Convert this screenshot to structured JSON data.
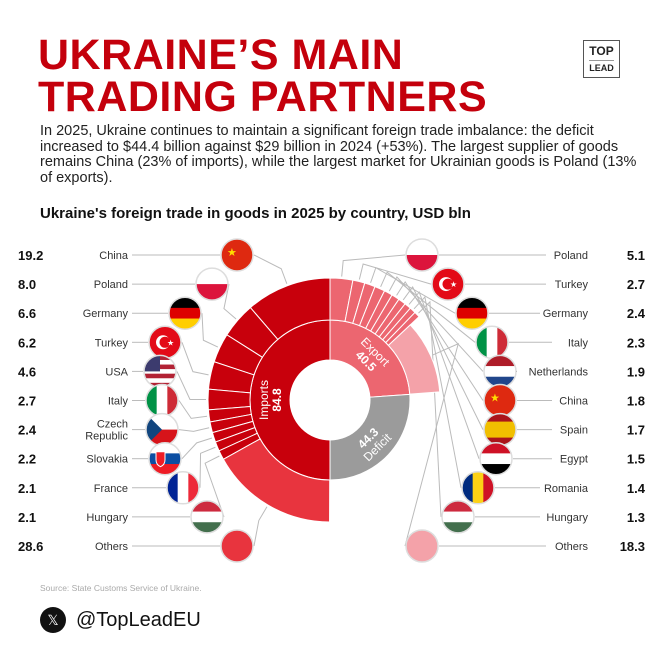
{
  "header": {
    "title_line1": "UKRAINE’S MAIN",
    "title_line2": "TRADING PARTNERS",
    "logo_top": "TOP",
    "logo_bottom": "LEAD",
    "subtitle": "In 2025, Ukraine continues to maintain a significant foreign trade imbalance: the deficit increased to $44.4 billion against $29 billion in 2024 (+53%). The largest supplier of goods remains China (23% of imports), while the largest market for Ukrainian goods is Poland (13% of exports)."
  },
  "chart_data": {
    "type": "sunburst",
    "title": "Ukraine's foreign trade in goods in 2025 by country, USD bln",
    "totals": {
      "imports_label": "Imports",
      "imports_value": "84.8",
      "export_label": "Export",
      "export_value": "40.5",
      "deficit_label": "Deficit",
      "deficit_value": "44.3"
    },
    "imports": [
      {
        "name": "China",
        "value": 19.2,
        "flag": "china-flag-icon"
      },
      {
        "name": "Poland",
        "value": 8.0,
        "flag": "poland-flag-icon"
      },
      {
        "name": "Germany",
        "value": 6.6,
        "flag": "germany-flag-icon"
      },
      {
        "name": "Turkey",
        "value": 6.2,
        "flag": "turkey-flag-icon"
      },
      {
        "name": "USA",
        "value": 4.6,
        "flag": "usa-flag-icon"
      },
      {
        "name": "Italy",
        "value": 2.7,
        "flag": "italy-flag-icon"
      },
      {
        "name": "Czech Republic",
        "value": 2.4,
        "flag": "czech-flag-icon"
      },
      {
        "name": "Slovakia",
        "value": 2.2,
        "flag": "slovakia-flag-icon"
      },
      {
        "name": "France",
        "value": 2.1,
        "flag": "france-flag-icon"
      },
      {
        "name": "Hungary",
        "value": 2.1,
        "flag": "hungary-flag-icon"
      },
      {
        "name": "Others",
        "value": 28.6,
        "flag": "others-circle-icon"
      }
    ],
    "exports": [
      {
        "name": "Poland",
        "value": 5.1,
        "flag": "poland-flag-icon"
      },
      {
        "name": "Turkey",
        "value": 2.7,
        "flag": "turkey-flag-icon"
      },
      {
        "name": "Germany",
        "value": 2.4,
        "flag": "germany-flag-icon"
      },
      {
        "name": "Italy",
        "value": 2.3,
        "flag": "italy-flag-icon"
      },
      {
        "name": "Netherlands",
        "value": 1.9,
        "flag": "netherlands-flag-icon"
      },
      {
        "name": "China",
        "value": 1.8,
        "flag": "china-flag-icon"
      },
      {
        "name": "Spain",
        "value": 1.7,
        "flag": "spain-flag-icon"
      },
      {
        "name": "Egypt",
        "value": 1.5,
        "flag": "egypt-flag-icon"
      },
      {
        "name": "Romania",
        "value": 1.4,
        "flag": "romania-flag-icon"
      },
      {
        "name": "Hungary",
        "value": 1.3,
        "flag": "hungary-flag-icon"
      },
      {
        "name": "Others",
        "value": 18.3,
        "flag": "others-circle-icon"
      }
    ],
    "colors": {
      "imports": "#c8000c",
      "imports_others": "#e8343e",
      "export": "#ec6670",
      "export_others": "#f4a2a9",
      "deficit": "#9b9b9b"
    }
  },
  "footer": {
    "source": "Source: State Customs Service of Ukraine.",
    "x_icon": "𝕏",
    "handle": "@TopLeadEU"
  }
}
